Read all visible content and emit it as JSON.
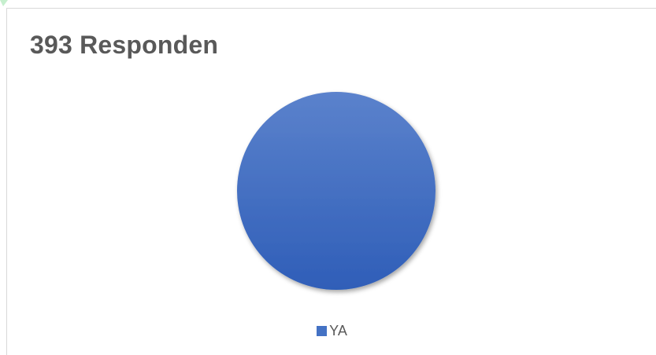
{
  "chart_data": {
    "type": "pie",
    "title": "393 Responden",
    "categories": [
      "YA"
    ],
    "values": [
      393
    ],
    "colors": [
      "#4472c4"
    ],
    "legend": "bottom",
    "grid": false
  }
}
